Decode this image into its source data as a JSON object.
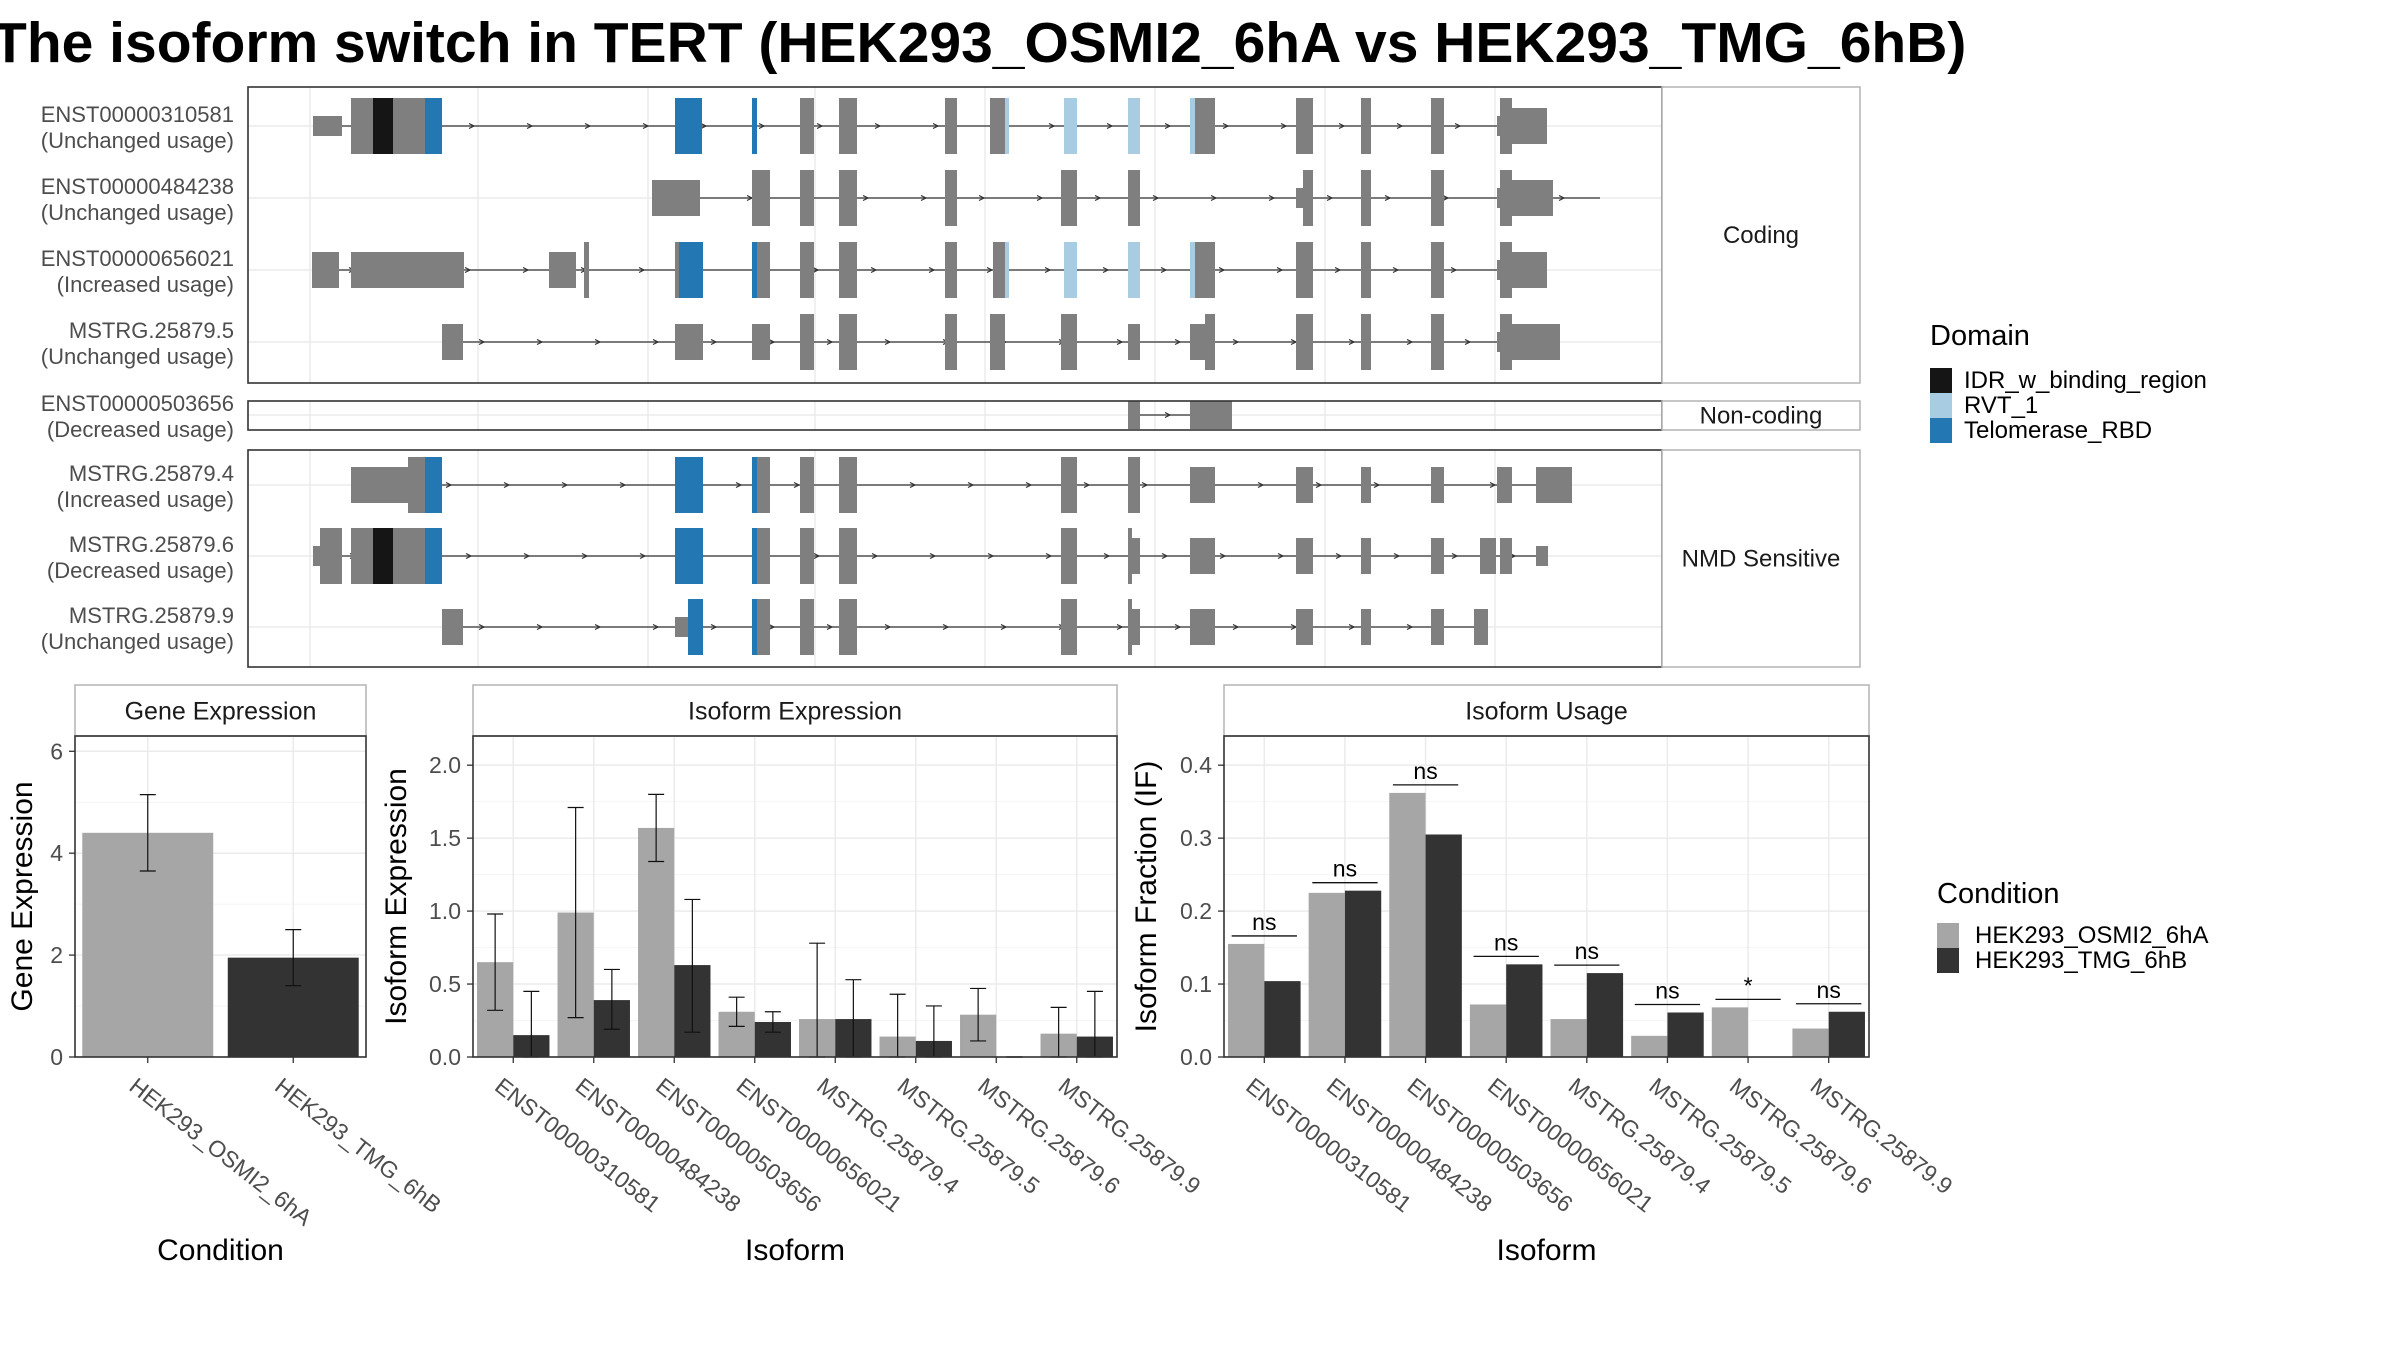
{
  "title": "The isoform switch in TERT (HEK293_OSMI2_6hA vs HEK293_TMG_6hB)",
  "chart_data": [
    {
      "type": "other",
      "description_kind": "transcript structures",
      "category_groups": [
        {
          "label": "Coding",
          "transcripts": [
            {
              "id": "ENST00000310581",
              "usage": "(Unchanged usage)"
            },
            {
              "id": "ENST00000484238",
              "usage": "(Unchanged usage)"
            },
            {
              "id": "ENST00000656021",
              "usage": "(Increased usage)"
            },
            {
              "id": "MSTRG.25879.5",
              "usage": "(Unchanged usage)"
            }
          ]
        },
        {
          "label": "Non-coding",
          "transcripts": [
            {
              "id": "ENST00000503656",
              "usage": "(Decreased usage)"
            }
          ]
        },
        {
          "label": "NMD Sensitive",
          "transcripts": [
            {
              "id": "MSTRG.25879.4",
              "usage": "(Increased usage)"
            },
            {
              "id": "MSTRG.25879.6",
              "usage": "(Decreased usage)"
            },
            {
              "id": "MSTRG.25879.9",
              "usage": "(Unchanged usage)"
            }
          ]
        }
      ],
      "legend_title": "Domain",
      "legend": [
        {
          "name": "IDR_w_binding_region",
          "color": "#151515"
        },
        {
          "name": "RVT_1",
          "color": "#a8cde3"
        },
        {
          "name": "Telomerase_RBD",
          "color": "#2378b4"
        }
      ]
    },
    {
      "type": "bar",
      "panel": "Gene Expression",
      "categories": [
        "HEK293_OSMI2_6hA",
        "HEK293_TMG_6hB"
      ],
      "values": [
        4.4,
        1.95
      ],
      "err_low": [
        3.65,
        1.4
      ],
      "err_high": [
        5.15,
        2.5
      ],
      "xlabel": "Condition",
      "ylabel": "Gene Expression",
      "ylim": [
        0,
        6.3
      ],
      "yticks": [
        "0",
        "2",
        "4",
        "6"
      ]
    },
    {
      "type": "bar",
      "panel": "Isoform Expression",
      "categories": [
        "ENST00000310581",
        "ENST00000484238",
        "ENST00000503656",
        "ENST00000656021",
        "MSTRG.25879.4",
        "MSTRG.25879.5",
        "MSTRG.25879.6",
        "MSTRG.25879.9"
      ],
      "series": [
        {
          "name": "HEK293_OSMI2_6hA",
          "values": [
            0.65,
            0.99,
            1.57,
            0.31,
            0.26,
            0.14,
            0.29,
            0.16
          ],
          "err_low": [
            0.32,
            0.27,
            1.34,
            0.21,
            0.0,
            0.0,
            0.11,
            0.0
          ],
          "err_high": [
            0.98,
            1.71,
            1.8,
            0.41,
            0.78,
            0.43,
            0.47,
            0.34
          ]
        },
        {
          "name": "HEK293_TMG_6hB",
          "values": [
            0.15,
            0.39,
            0.63,
            0.24,
            0.26,
            0.11,
            0.0,
            0.14
          ],
          "err_low": [
            0.0,
            0.19,
            0.17,
            0.17,
            0.0,
            0.0,
            0.0,
            0.0
          ],
          "err_high": [
            0.45,
            0.6,
            1.08,
            0.31,
            0.53,
            0.35,
            0.0,
            0.45
          ]
        }
      ],
      "xlabel": "Isoform",
      "ylabel": "Isoform Expression",
      "ylim": [
        0,
        2.2
      ],
      "yticks": [
        "0.0",
        "0.5",
        "1.0",
        "1.5",
        "2.0"
      ]
    },
    {
      "type": "bar",
      "panel": "Isoform Usage",
      "categories": [
        "ENST00000310581",
        "ENST00000484238",
        "ENST00000503656",
        "ENST00000656021",
        "MSTRG.25879.4",
        "MSTRG.25879.5",
        "MSTRG.25879.6",
        "MSTRG.25879.9"
      ],
      "series": [
        {
          "name": "HEK293_OSMI2_6hA",
          "values": [
            0.155,
            0.225,
            0.362,
            0.072,
            0.052,
            0.029,
            0.068,
            0.039
          ]
        },
        {
          "name": "HEK293_TMG_6hB",
          "values": [
            0.104,
            0.228,
            0.305,
            0.127,
            0.115,
            0.061,
            0.0,
            0.062
          ]
        }
      ],
      "significance": [
        "ns",
        "ns",
        "ns",
        "ns",
        "ns",
        "ns",
        "*",
        "ns"
      ],
      "xlabel": "Isoform",
      "ylabel": "Isoform Fraction (IF)",
      "ylim": [
        0,
        0.44
      ],
      "yticks": [
        "0.0",
        "0.1",
        "0.2",
        "0.3",
        "0.4"
      ]
    }
  ],
  "condition_legend": {
    "title": "Condition",
    "items": [
      {
        "name": "HEK293_OSMI2_6hA",
        "color": "#a6a6a6"
      },
      {
        "name": "HEK293_TMG_6hB",
        "color": "#333333"
      }
    ]
  },
  "colors": {
    "exon": "#7f7f7f",
    "panel_border": "#333333",
    "grid": "#ebebeb",
    "strip_border": "#b3b3b3"
  }
}
